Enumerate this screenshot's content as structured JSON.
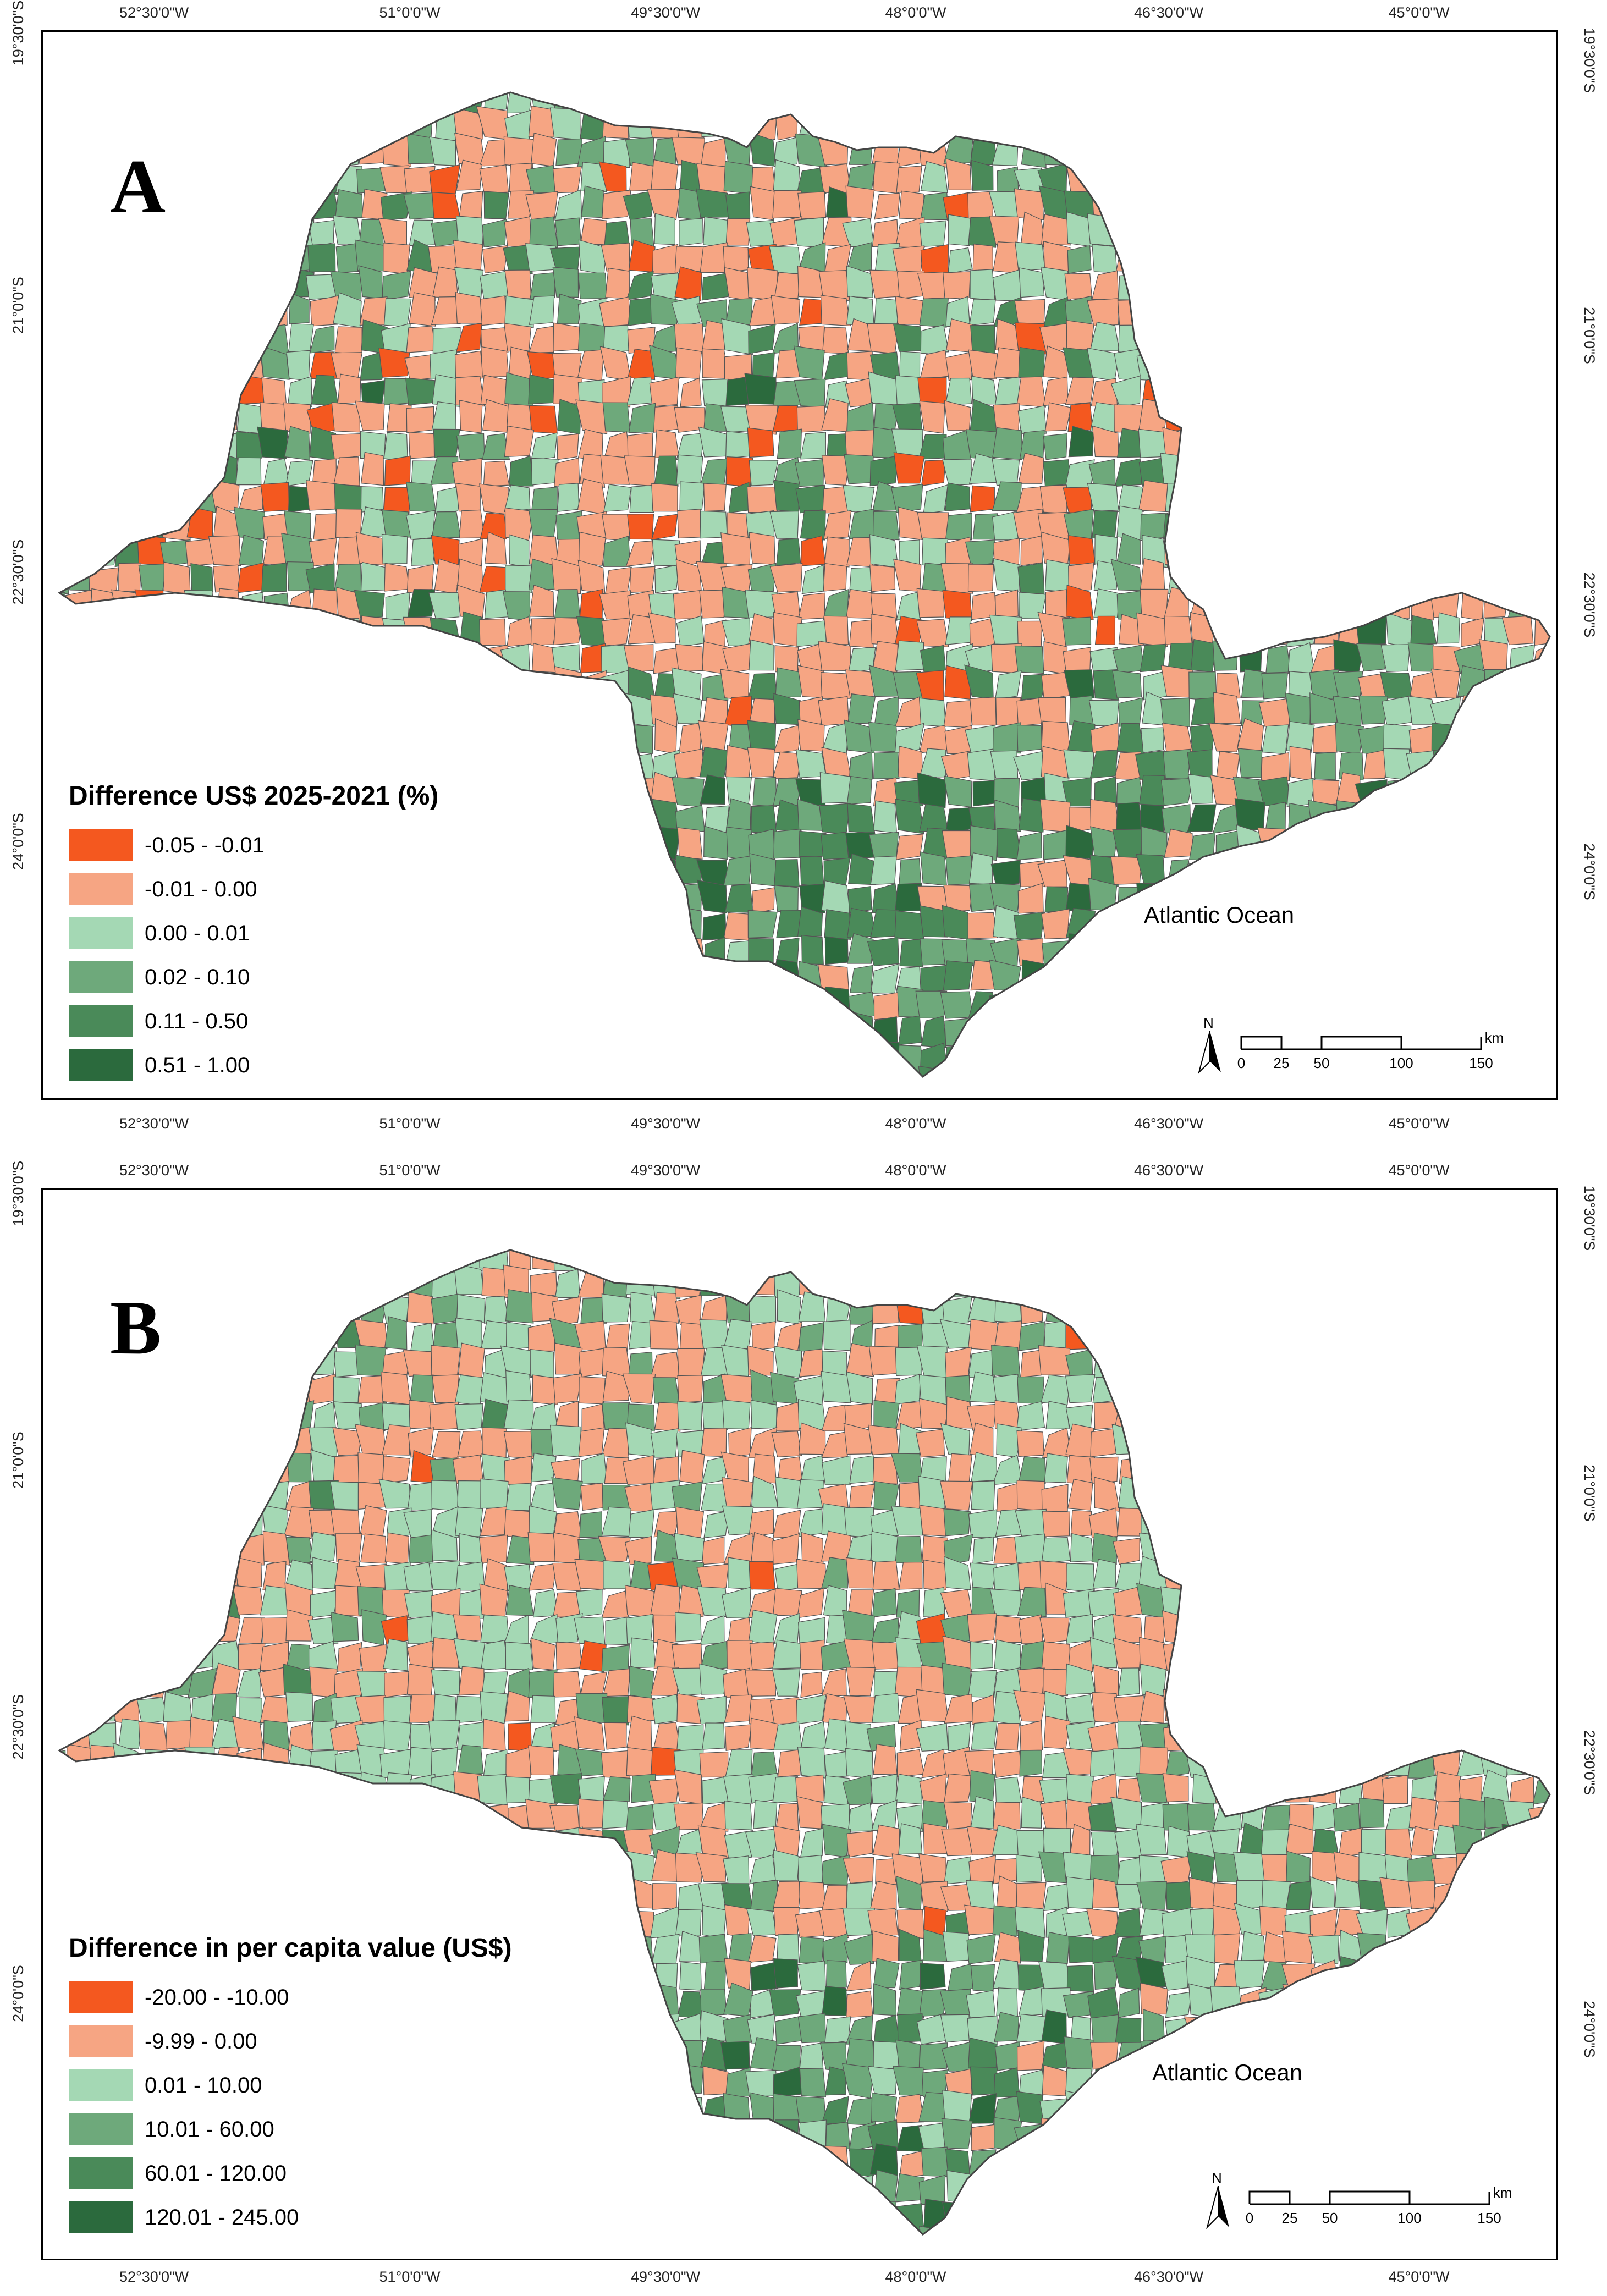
{
  "colors": {
    "c1": "#f4581f",
    "c2": "#f6a583",
    "c3": "#a4d8b4",
    "c4": "#6ea97b",
    "c5": "#4a8a59",
    "c6": "#2b6a3d",
    "border": "#555555"
  },
  "axes": {
    "longitude_labels": [
      "52°30'0\"W",
      "51°0'0\"W",
      "49°30'0\"W",
      "48°0'0\"W",
      "46°30'0\"W",
      "45°0'0\"W"
    ],
    "latitude_labels": [
      "19°30'0\"S",
      "21°0'0\"S",
      "22°30'0\"S",
      "24°0'0\"S"
    ]
  },
  "panels": [
    {
      "letter": "A",
      "legend_title": "Difference US$ 2025-2021 (%)",
      "legend": [
        {
          "label": "-0.05 - -0.01",
          "color": "c1"
        },
        {
          "label": "-0.01 - 0.00",
          "color": "c2"
        },
        {
          "label": "0.00 - 0.01",
          "color": "c3"
        },
        {
          "label": "0.02 - 0.10",
          "color": "c4"
        },
        {
          "label": "0.11 - 0.50",
          "color": "c5"
        },
        {
          "label": "0.51 - 1.00",
          "color": "c6"
        }
      ],
      "ocean_label": "Atlantic Ocean",
      "north_label": "N",
      "scale_labels": [
        "0",
        "25",
        "50",
        "100",
        "150"
      ],
      "scale_unit": "km"
    },
    {
      "letter": "B",
      "legend_title": "Difference in per capita value (US$)",
      "legend": [
        {
          "label": "-20.00 - -10.00",
          "color": "c1"
        },
        {
          "label": "-9.99 - 0.00",
          "color": "c2"
        },
        {
          "label": "0.01 - 10.00",
          "color": "c3"
        },
        {
          "label": "10.01 - 60.00",
          "color": "c4"
        },
        {
          "label": "60.01 - 120.00",
          "color": "c5"
        },
        {
          "label": "120.01 - 245.00",
          "color": "c6"
        }
      ],
      "ocean_label": "Atlantic Ocean",
      "north_label": "N",
      "scale_labels": [
        "0",
        "25",
        "50",
        "100",
        "150"
      ],
      "scale_unit": "km"
    }
  ]
}
